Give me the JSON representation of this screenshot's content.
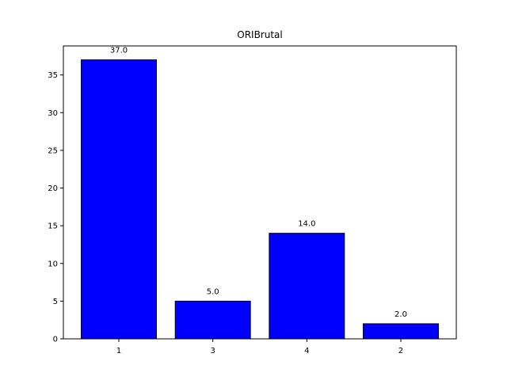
{
  "chart_data": {
    "type": "bar",
    "title": "ORIBrutal",
    "xlabel": "",
    "ylabel": "",
    "categories": [
      "1",
      "3",
      "4",
      "2"
    ],
    "values": [
      37.0,
      5.0,
      14.0,
      2.0
    ],
    "value_labels": [
      "37.0",
      "5.0",
      "14.0",
      "2.0"
    ],
    "ylim": [
      0,
      38.85
    ],
    "yticks": [
      0,
      5,
      10,
      15,
      20,
      25,
      30,
      35
    ],
    "ytick_labels": [
      "0",
      "5",
      "10",
      "15",
      "20",
      "25",
      "30",
      "35"
    ],
    "grid": false,
    "bar_color": "#0000ff",
    "bar_edge_color": "#000000"
  }
}
